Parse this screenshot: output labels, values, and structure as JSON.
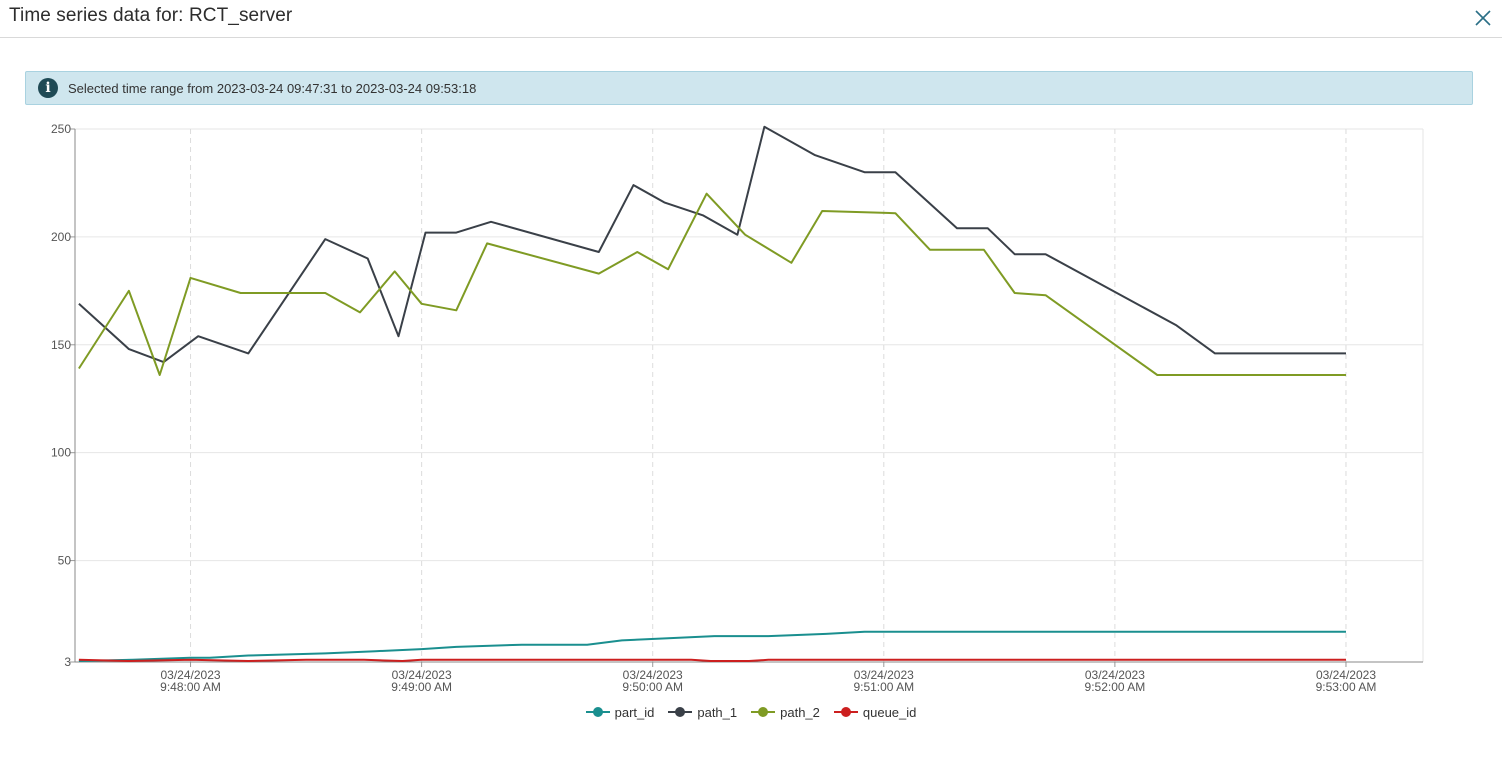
{
  "window": {
    "title": "Time series data for: RCT_server",
    "close_icon": "close-icon"
  },
  "info": {
    "icon": "info-icon",
    "icon_glyph": "i",
    "message": "Selected time range from 2023-03-24 09:47:31 to 2023-03-24 09:53:18"
  },
  "chart_data": {
    "type": "line",
    "title": "",
    "xlabel": "",
    "ylabel": "",
    "ylim": [
      3,
      250
    ],
    "yticks": [
      3,
      50,
      100,
      150,
      200,
      250
    ],
    "xlim": [
      "2023-03-24 09:47:30",
      "2023-03-24 09:53:20"
    ],
    "xticks": [
      {
        "t": "2023-03-24 09:48:00",
        "date": "03/24/2023",
        "time": "9:48:00 AM"
      },
      {
        "t": "2023-03-24 09:49:00",
        "date": "03/24/2023",
        "time": "9:49:00 AM"
      },
      {
        "t": "2023-03-24 09:50:00",
        "date": "03/24/2023",
        "time": "9:50:00 AM"
      },
      {
        "t": "2023-03-24 09:51:00",
        "date": "03/24/2023",
        "time": "9:51:00 AM"
      },
      {
        "t": "2023-03-24 09:52:00",
        "date": "03/24/2023",
        "time": "9:52:00 AM"
      },
      {
        "t": "2023-03-24 09:53:00",
        "date": "03/24/2023",
        "time": "9:53:00 AM"
      }
    ],
    "grid": true,
    "legend_position": "bottom-center",
    "series": [
      {
        "name": "part_id",
        "color": "#1a8f8f",
        "points": [
          [
            "2023-03-24 09:47:31",
            3
          ],
          [
            "2023-03-24 09:47:45",
            4
          ],
          [
            "2023-03-24 09:48:00",
            5
          ],
          [
            "2023-03-24 09:48:05",
            5
          ],
          [
            "2023-03-24 09:48:15",
            6
          ],
          [
            "2023-03-24 09:48:35",
            7
          ],
          [
            "2023-03-24 09:48:48",
            8
          ],
          [
            "2023-03-24 09:49:00",
            9
          ],
          [
            "2023-03-24 09:49:09",
            10
          ],
          [
            "2023-03-24 09:49:26",
            11
          ],
          [
            "2023-03-24 09:49:43",
            11
          ],
          [
            "2023-03-24 09:49:52",
            13
          ],
          [
            "2023-03-24 09:50:04",
            14
          ],
          [
            "2023-03-24 09:50:16",
            15
          ],
          [
            "2023-03-24 09:50:30",
            15
          ],
          [
            "2023-03-24 09:50:45",
            16
          ],
          [
            "2023-03-24 09:50:55",
            17
          ],
          [
            "2023-03-24 09:51:30",
            17
          ],
          [
            "2023-03-24 09:52:00",
            17
          ],
          [
            "2023-03-24 09:53:00",
            17
          ]
        ]
      },
      {
        "name": "path_1",
        "color": "#3a4048",
        "points": [
          [
            "2023-03-24 09:47:31",
            169
          ],
          [
            "2023-03-24 09:47:44",
            148
          ],
          [
            "2023-03-24 09:47:53",
            142
          ],
          [
            "2023-03-24 09:48:02",
            154
          ],
          [
            "2023-03-24 09:48:15",
            146
          ],
          [
            "2023-03-24 09:48:35",
            199
          ],
          [
            "2023-03-24 09:48:46",
            190
          ],
          [
            "2023-03-24 09:48:54",
            154
          ],
          [
            "2023-03-24 09:49:01",
            202
          ],
          [
            "2023-03-24 09:49:09",
            202
          ],
          [
            "2023-03-24 09:49:18",
            207
          ],
          [
            "2023-03-24 09:49:46",
            193
          ],
          [
            "2023-03-24 09:49:55",
            224
          ],
          [
            "2023-03-24 09:50:03",
            216
          ],
          [
            "2023-03-24 09:50:13",
            210
          ],
          [
            "2023-03-24 09:50:22",
            201
          ],
          [
            "2023-03-24 09:50:29",
            251
          ],
          [
            "2023-03-24 09:50:42",
            238
          ],
          [
            "2023-03-24 09:50:55",
            230
          ],
          [
            "2023-03-24 09:51:03",
            230
          ],
          [
            "2023-03-24 09:51:19",
            204
          ],
          [
            "2023-03-24 09:51:27",
            204
          ],
          [
            "2023-03-24 09:51:34",
            192
          ],
          [
            "2023-03-24 09:51:42",
            192
          ],
          [
            "2023-03-24 09:52:16",
            159
          ],
          [
            "2023-03-24 09:52:26",
            146
          ],
          [
            "2023-03-24 09:53:00",
            146
          ]
        ]
      },
      {
        "name": "path_2",
        "color": "#7f9b24",
        "points": [
          [
            "2023-03-24 09:47:31",
            139
          ],
          [
            "2023-03-24 09:47:44",
            175
          ],
          [
            "2023-03-24 09:47:52",
            136
          ],
          [
            "2023-03-24 09:48:00",
            181
          ],
          [
            "2023-03-24 09:48:13",
            174
          ],
          [
            "2023-03-24 09:48:35",
            174
          ],
          [
            "2023-03-24 09:48:44",
            165
          ],
          [
            "2023-03-24 09:48:53",
            184
          ],
          [
            "2023-03-24 09:49:00",
            169
          ],
          [
            "2023-03-24 09:49:09",
            166
          ],
          [
            "2023-03-24 09:49:17",
            197
          ],
          [
            "2023-03-24 09:49:46",
            183
          ],
          [
            "2023-03-24 09:49:56",
            193
          ],
          [
            "2023-03-24 09:50:04",
            185
          ],
          [
            "2023-03-24 09:50:14",
            220
          ],
          [
            "2023-03-24 09:50:24",
            201
          ],
          [
            "2023-03-24 09:50:36",
            188
          ],
          [
            "2023-03-24 09:50:44",
            212
          ],
          [
            "2023-03-24 09:51:03",
            211
          ],
          [
            "2023-03-24 09:51:12",
            194
          ],
          [
            "2023-03-24 09:51:26",
            194
          ],
          [
            "2023-03-24 09:51:34",
            174
          ],
          [
            "2023-03-24 09:51:42",
            173
          ],
          [
            "2023-03-24 09:52:11",
            136
          ],
          [
            "2023-03-24 09:52:26",
            136
          ],
          [
            "2023-03-24 09:53:00",
            136
          ]
        ]
      },
      {
        "name": "queue_id",
        "color": "#cc1f1f",
        "points": [
          [
            "2023-03-24 09:47:31",
            4
          ],
          [
            "2023-03-24 09:47:44",
            3
          ],
          [
            "2023-03-24 09:48:00",
            4
          ],
          [
            "2023-03-24 09:48:15",
            3
          ],
          [
            "2023-03-24 09:48:30",
            4
          ],
          [
            "2023-03-24 09:48:45",
            4
          ],
          [
            "2023-03-24 09:48:55",
            3
          ],
          [
            "2023-03-24 09:49:00",
            4
          ],
          [
            "2023-03-24 09:49:45",
            4
          ],
          [
            "2023-03-24 09:50:10",
            4
          ],
          [
            "2023-03-24 09:50:15",
            3
          ],
          [
            "2023-03-24 09:50:25",
            3
          ],
          [
            "2023-03-24 09:50:30",
            4
          ],
          [
            "2023-03-24 09:51:00",
            4
          ],
          [
            "2023-03-24 09:52:00",
            4
          ],
          [
            "2023-03-24 09:53:00",
            4
          ]
        ]
      }
    ]
  }
}
